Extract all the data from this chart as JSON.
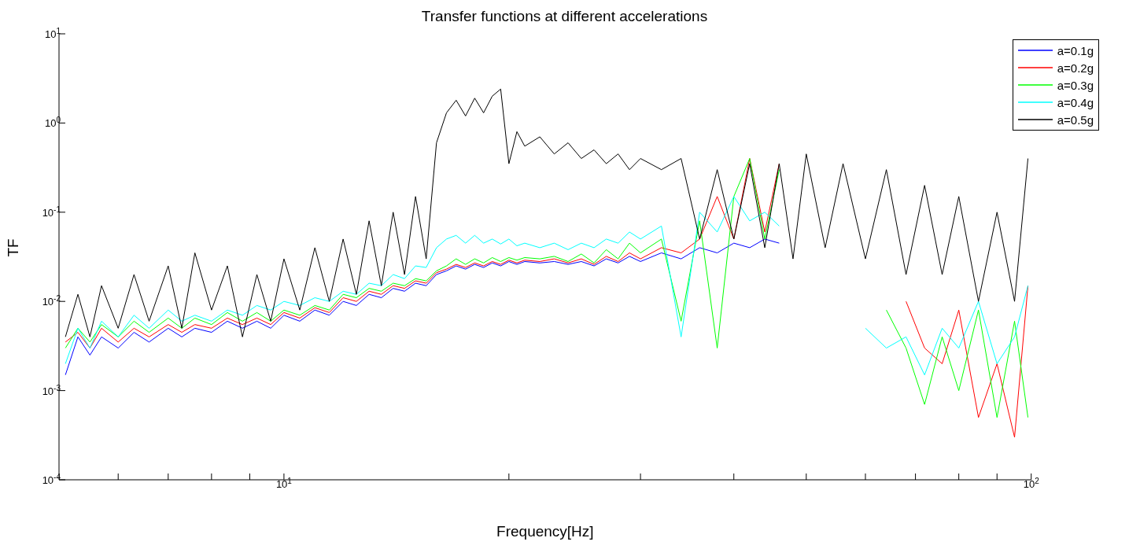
{
  "chart_data": {
    "type": "line",
    "title": "Transfer functions at different accelerations",
    "xlabel": "Frequency[Hz]",
    "ylabel": "TF",
    "log": "xy",
    "grid": false,
    "legend": "top right",
    "marker": "none",
    "line_style": "solid",
    "xlim": [
      5,
      100
    ],
    "xticks": [
      {
        "value": 6,
        "label": null
      },
      {
        "value": 7,
        "label": null
      },
      {
        "value": 8,
        "label": null
      },
      {
        "value": 9,
        "label": null
      },
      {
        "value": 10,
        "label": "10$^{1}$"
      },
      {
        "value": 20,
        "label": null
      },
      {
        "value": 30,
        "label": null
      },
      {
        "value": 40,
        "label": null
      },
      {
        "value": 50,
        "label": null
      },
      {
        "value": 60,
        "label": null
      },
      {
        "value": 70,
        "label": null
      },
      {
        "value": 80,
        "label": null
      },
      {
        "value": 90,
        "label": null
      },
      {
        "value": 100,
        "label": "10$^{2}$"
      }
    ],
    "ylim": [
      0.0001,
      10
    ],
    "yticks": [
      {
        "value": 0.0001,
        "label": "10$^{-4}$"
      },
      {
        "value": 0.001,
        "label": "10$^{-3}$"
      },
      {
        "value": 0.01,
        "label": "10$^{-2}$"
      },
      {
        "value": 0.1,
        "label": "10$^{-1}$"
      },
      {
        "value": 1,
        "label": "10$^{0}$"
      },
      {
        "value": 10,
        "label": "10$^{1}$"
      }
    ],
    "x": [
      5.1,
      5.3,
      5.5,
      5.7,
      6,
      6.3,
      6.6,
      7,
      7.3,
      7.6,
      8,
      8.4,
      8.8,
      9.2,
      9.6,
      10,
      10.5,
      11,
      11.5,
      12,
      12.5,
      13,
      13.5,
      14,
      14.5,
      15,
      15.5,
      16,
      16.5,
      17,
      17.5,
      18,
      18.5,
      19,
      19.5,
      20,
      20.5,
      21,
      22,
      23,
      24,
      25,
      26,
      27,
      28,
      29,
      30,
      32,
      34,
      36,
      38,
      40,
      42,
      44,
      46,
      48,
      50,
      53,
      56,
      60,
      64,
      68,
      72,
      76,
      80,
      85,
      90,
      95,
      99
    ],
    "series": [
      {
        "name": "a=0.1g",
        "color": "#0000ff",
        "values": [
          0.0015,
          0.004,
          0.0025,
          0.004,
          0.003,
          0.0045,
          0.0035,
          0.005,
          0.004,
          0.005,
          0.0045,
          0.006,
          0.005,
          0.006,
          0.005,
          0.007,
          0.006,
          0.008,
          0.007,
          0.01,
          0.009,
          0.012,
          0.011,
          0.014,
          0.013,
          0.016,
          0.015,
          0.02,
          0.022,
          0.025,
          0.023,
          0.026,
          0.024,
          0.027,
          0.025,
          0.028,
          0.026,
          0.028,
          0.027,
          0.028,
          0.026,
          0.028,
          0.025,
          0.03,
          0.027,
          0.032,
          0.028,
          0.035,
          0.03,
          0.04,
          0.035,
          0.045,
          0.04,
          0.05,
          0.045,
          null,
          null,
          null,
          null,
          null,
          null,
          null,
          null,
          null,
          null,
          null,
          null,
          null,
          null
        ]
      },
      {
        "name": "a=0.2g",
        "color": "#ff0000",
        "values": [
          0.0035,
          0.0045,
          0.003,
          0.005,
          0.0035,
          0.005,
          0.004,
          0.0055,
          0.0045,
          0.0055,
          0.005,
          0.0065,
          0.0055,
          0.0065,
          0.0055,
          0.0075,
          0.0065,
          0.0085,
          0.0075,
          0.011,
          0.01,
          0.013,
          0.012,
          0.015,
          0.014,
          0.017,
          0.016,
          0.021,
          0.023,
          0.026,
          0.024,
          0.027,
          0.025,
          0.028,
          0.026,
          0.029,
          0.027,
          0.029,
          0.028,
          0.03,
          0.027,
          0.03,
          0.026,
          0.032,
          0.028,
          0.035,
          0.03,
          0.04,
          0.035,
          0.05,
          0.15,
          0.05,
          0.4,
          0.06,
          0.35,
          null,
          null,
          null,
          null,
          null,
          null,
          0.01,
          0.003,
          0.002,
          0.008,
          0.0005,
          0.002,
          0.0003,
          0.015
        ]
      },
      {
        "name": "a=0.3g",
        "color": "#00ff00",
        "values": [
          0.003,
          0.005,
          0.0035,
          0.0055,
          0.004,
          0.006,
          0.0045,
          0.0065,
          0.005,
          0.0065,
          0.0055,
          0.0075,
          0.006,
          0.0075,
          0.006,
          0.008,
          0.007,
          0.009,
          0.008,
          0.012,
          0.011,
          0.014,
          0.013,
          0.016,
          0.015,
          0.018,
          0.017,
          0.022,
          0.025,
          0.03,
          0.026,
          0.03,
          0.027,
          0.031,
          0.028,
          0.031,
          0.029,
          0.031,
          0.03,
          0.032,
          0.028,
          0.034,
          0.027,
          0.038,
          0.03,
          0.045,
          0.035,
          0.05,
          0.006,
          0.08,
          0.003,
          0.15,
          0.4,
          0.05,
          0.3,
          null,
          null,
          null,
          null,
          null,
          0.008,
          0.003,
          0.0007,
          0.004,
          0.001,
          0.008,
          0.0005,
          0.006,
          0.0005
        ]
      },
      {
        "name": "a=0.4g",
        "color": "#00ffff",
        "values": [
          0.002,
          0.005,
          0.003,
          0.006,
          0.004,
          0.007,
          0.005,
          0.008,
          0.006,
          0.007,
          0.006,
          0.008,
          0.007,
          0.009,
          0.008,
          0.01,
          0.009,
          0.011,
          0.01,
          0.013,
          0.012,
          0.016,
          0.015,
          0.02,
          0.018,
          0.025,
          0.024,
          0.04,
          0.05,
          0.055,
          0.045,
          0.055,
          0.045,
          0.05,
          0.044,
          0.05,
          0.042,
          0.045,
          0.04,
          0.045,
          0.038,
          0.045,
          0.04,
          0.05,
          0.045,
          0.06,
          0.05,
          0.07,
          0.004,
          0.1,
          0.06,
          0.15,
          0.08,
          0.1,
          0.07,
          null,
          null,
          null,
          null,
          0.005,
          0.003,
          0.004,
          0.0015,
          0.005,
          0.003,
          0.01,
          0.002,
          0.004,
          0.015
        ]
      },
      {
        "name": "a=0.5g",
        "color": "#000000",
        "values": [
          0.004,
          0.012,
          0.004,
          0.015,
          0.005,
          0.02,
          0.006,
          0.025,
          0.005,
          0.035,
          0.008,
          0.025,
          0.004,
          0.02,
          0.006,
          0.03,
          0.008,
          0.04,
          0.01,
          0.05,
          0.012,
          0.08,
          0.015,
          0.1,
          0.02,
          0.15,
          0.03,
          0.6,
          1.3,
          1.8,
          1.2,
          1.9,
          1.3,
          2.0,
          2.4,
          0.35,
          0.8,
          0.55,
          0.7,
          0.45,
          0.6,
          0.4,
          0.5,
          0.35,
          0.45,
          0.3,
          0.4,
          0.3,
          0.4,
          0.05,
          0.3,
          0.05,
          0.35,
          0.04,
          0.35,
          0.03,
          0.45,
          0.04,
          0.35,
          0.03,
          0.3,
          0.02,
          0.2,
          0.02,
          0.15,
          0.01,
          0.1,
          0.01,
          0.4
        ]
      }
    ]
  }
}
